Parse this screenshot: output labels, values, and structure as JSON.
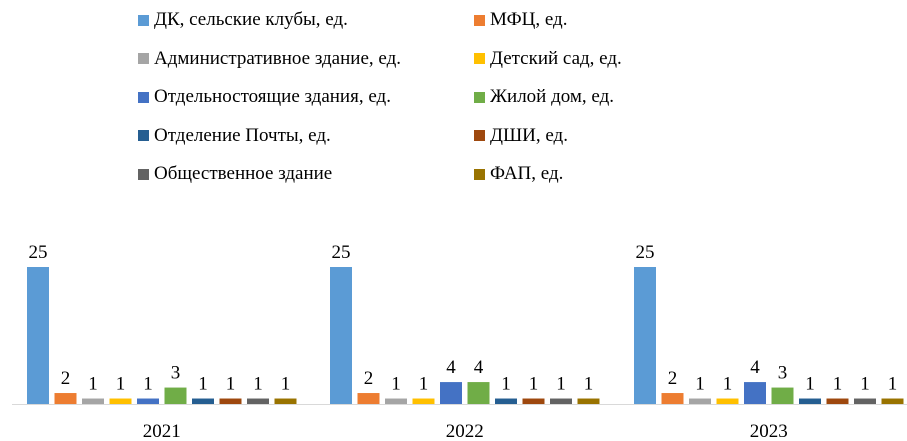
{
  "chart_data": {
    "type": "bar",
    "categories": [
      "2021",
      "2022",
      "2023"
    ],
    "series": [
      {
        "name": "ДК, сельские клубы, ед.",
        "color": "#5B9BD5",
        "values": [
          25,
          25,
          25
        ]
      },
      {
        "name": "МФЦ, ед.",
        "color": "#ED7D31",
        "values": [
          2,
          2,
          2
        ]
      },
      {
        "name": "Административное здание, ед.",
        "color": "#A5A5A5",
        "values": [
          1,
          1,
          1
        ]
      },
      {
        "name": "Детский сад, ед.",
        "color": "#FFC000",
        "values": [
          1,
          1,
          1
        ]
      },
      {
        "name": "Отдельностоящие здания, ед.",
        "color": "#4472C4",
        "values": [
          1,
          4,
          4
        ]
      },
      {
        "name": "Жилой дом, ед.",
        "color": "#70AD47",
        "values": [
          3,
          4,
          3
        ]
      },
      {
        "name": "Отделение Почты, ед.",
        "color": "#255E91",
        "values": [
          1,
          1,
          1
        ]
      },
      {
        "name": "ДШИ, ед.",
        "color": "#9E480E",
        "values": [
          1,
          1,
          1
        ]
      },
      {
        "name": "Общественное здание",
        "color": "#636363",
        "values": [
          1,
          1,
          1
        ]
      },
      {
        "name": "ФАП, ед.",
        "color": "#997300",
        "values": [
          1,
          1,
          1
        ]
      }
    ],
    "ylim": [
      0,
      25
    ],
    "grid": false,
    "legend_position": "top",
    "data_labels": true
  }
}
